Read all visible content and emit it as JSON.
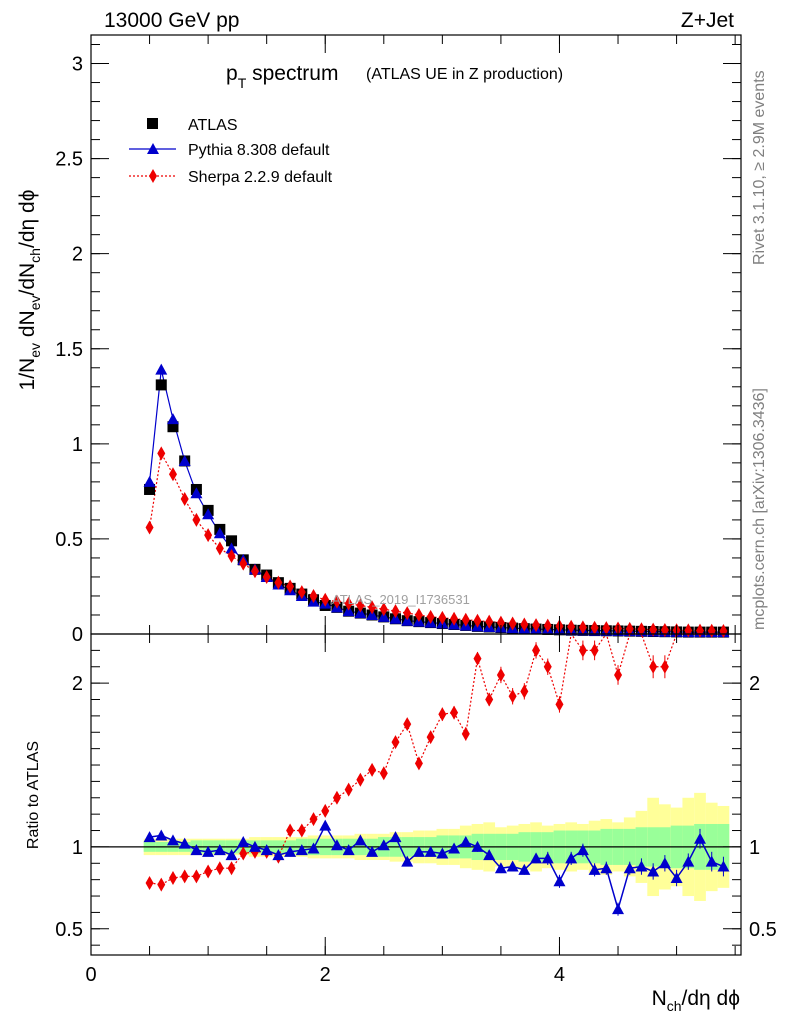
{
  "header": {
    "energy": "13000 GeV pp",
    "process": "Z+Jet"
  },
  "side_labels": {
    "rivet": "Rivet 3.1.10, ≥ 2.9M events",
    "mcplots": "mcplots.cern.ch [arXiv:1306.3436]"
  },
  "chart_data": {
    "type": "scatter",
    "title_main": "p",
    "title_sub": "T",
    "title_tail": " spectrum",
    "title_note": "(ATLAS UE in Z production)",
    "analysis_label": "ATLAS_2019_I1736531",
    "xlabel": {
      "main": "N",
      "sub": "ch",
      "tail": "/dη dϕ"
    },
    "ylabel": {
      "p1": "1/N",
      "s1": "ev",
      "p2": " dN",
      "s2": "ev",
      "p3": "/dN",
      "s3": "ch",
      "p4": "/dη dϕ"
    },
    "ratio_ylabel": "Ratio to ATLAS",
    "xlim": [
      0,
      5.55
    ],
    "ylim": [
      0,
      3.15
    ],
    "ratio_ylim": [
      0.34,
      2.3
    ],
    "x_ticks": [
      0,
      2,
      4
    ],
    "x_tick_labels": [
      "0",
      "2",
      "4"
    ],
    "y_ticks": [
      0,
      0.5,
      1,
      1.5,
      2,
      2.5,
      3
    ],
    "y_tick_labels": [
      "0",
      "0.5",
      "1",
      "1.5",
      "2",
      "2.5",
      "3"
    ],
    "ratio_ticks": [
      0.5,
      1,
      2
    ],
    "ratio_tick_labels": [
      "0.5",
      "1",
      "2"
    ],
    "legend": [
      {
        "name": "ATLAS",
        "marker": "square",
        "color": "#000000"
      },
      {
        "name": "Pythia 8.308 default",
        "marker": "triangle",
        "color": "#0000cc"
      },
      {
        "name": "Sherpa 2.2.9 default",
        "marker": "diamond",
        "color": "#ee0000"
      }
    ],
    "x": [
      0.5,
      0.6,
      0.7,
      0.8,
      0.9,
      1.0,
      1.1,
      1.2,
      1.3,
      1.4,
      1.5,
      1.6,
      1.7,
      1.8,
      1.9,
      2.0,
      2.1,
      2.2,
      2.3,
      2.4,
      2.5,
      2.6,
      2.7,
      2.8,
      2.9,
      3.0,
      3.1,
      3.2,
      3.3,
      3.4,
      3.5,
      3.6,
      3.7,
      3.8,
      3.9,
      4.0,
      4.1,
      4.2,
      4.3,
      4.4,
      4.5,
      4.6,
      4.7,
      4.8,
      4.9,
      5.0,
      5.1,
      5.2,
      5.3,
      5.4
    ],
    "series": [
      {
        "name": "ATLAS",
        "values": [
          0.76,
          1.31,
          1.09,
          0.91,
          0.76,
          0.65,
          0.55,
          0.49,
          0.39,
          0.34,
          0.31,
          0.27,
          0.24,
          0.21,
          0.18,
          0.15,
          0.14,
          0.12,
          0.11,
          0.1,
          0.09,
          0.08,
          0.07,
          0.065,
          0.06,
          0.055,
          0.05,
          0.045,
          0.04,
          0.037,
          0.034,
          0.031,
          0.028,
          0.026,
          0.024,
          0.022,
          0.02,
          0.019,
          0.018,
          0.017,
          0.016,
          0.015,
          0.014,
          0.013,
          0.012,
          0.011,
          0.01,
          0.01,
          0.01,
          0.01
        ]
      },
      {
        "name": "Pythia 8.308 default",
        "values": [
          0.8,
          1.39,
          1.13,
          0.91,
          0.74,
          0.63,
          0.53,
          0.45,
          0.39,
          0.34,
          0.3,
          0.26,
          0.23,
          0.2,
          0.17,
          0.16,
          0.14,
          0.12,
          0.11,
          0.1,
          0.09,
          0.08,
          0.07,
          0.065,
          0.06,
          0.055,
          0.05,
          0.045,
          0.04,
          0.037,
          0.034,
          0.031,
          0.028,
          0.026,
          0.024,
          0.022,
          0.02,
          0.019,
          0.018,
          0.017,
          0.016,
          0.015,
          0.014,
          0.013,
          0.012,
          0.011,
          0.01,
          0.01,
          0.01,
          0.01
        ]
      },
      {
        "name": "Sherpa 2.2.9 default",
        "values": [
          0.56,
          0.95,
          0.84,
          0.71,
          0.6,
          0.52,
          0.45,
          0.41,
          0.37,
          0.33,
          0.3,
          0.27,
          0.25,
          0.22,
          0.2,
          0.18,
          0.17,
          0.16,
          0.15,
          0.14,
          0.13,
          0.12,
          0.11,
          0.1,
          0.09,
          0.085,
          0.08,
          0.075,
          0.07,
          0.065,
          0.06,
          0.055,
          0.05,
          0.047,
          0.044,
          0.041,
          0.038,
          0.035,
          0.033,
          0.031,
          0.029,
          0.027,
          0.025,
          0.023,
          0.021,
          0.02,
          0.019,
          0.018,
          0.017,
          0.016
        ]
      }
    ],
    "ratio_series": [
      {
        "name": "Pythia 8.308 default",
        "values": [
          1.06,
          1.07,
          1.04,
          1.02,
          0.98,
          0.97,
          0.98,
          0.95,
          1.03,
          1.0,
          0.98,
          0.95,
          0.97,
          0.98,
          0.99,
          1.13,
          1.01,
          0.98,
          1.04,
          0.97,
          1.01,
          1.06,
          0.91,
          0.97,
          0.97,
          0.96,
          0.99,
          1.03,
          1.0,
          0.95,
          0.87,
          0.88,
          0.86,
          0.93,
          0.93,
          0.79,
          0.93,
          0.98,
          0.86,
          0.87,
          0.62,
          0.87,
          0.88,
          0.85,
          0.9,
          0.81,
          0.91,
          1.05,
          0.91,
          0.88
        ],
        "errors": [
          0.01,
          0.01,
          0.01,
          0.01,
          0.01,
          0.01,
          0.01,
          0.01,
          0.01,
          0.01,
          0.01,
          0.01,
          0.01,
          0.01,
          0.01,
          0.02,
          0.02,
          0.02,
          0.02,
          0.02,
          0.02,
          0.02,
          0.02,
          0.02,
          0.02,
          0.02,
          0.02,
          0.03,
          0.03,
          0.03,
          0.03,
          0.03,
          0.03,
          0.03,
          0.04,
          0.04,
          0.04,
          0.04,
          0.04,
          0.04,
          0.04,
          0.04,
          0.05,
          0.05,
          0.05,
          0.05,
          0.05,
          0.06,
          0.06,
          0.06
        ]
      },
      {
        "name": "Sherpa 2.2.9 default",
        "values": [
          0.78,
          0.77,
          0.81,
          0.82,
          0.82,
          0.85,
          0.87,
          0.87,
          0.96,
          0.97,
          0.97,
          0.94,
          1.1,
          1.1,
          1.17,
          1.22,
          1.3,
          1.35,
          1.41,
          1.47,
          1.45,
          1.64,
          1.75,
          1.51,
          1.67,
          1.81,
          1.82,
          1.69,
          2.15,
          1.9,
          2.05,
          1.92,
          1.95,
          2.2,
          2.1,
          1.87,
          2.3,
          2.2,
          2.2,
          2.3,
          2.05,
          2.3,
          2.4,
          2.1,
          2.1,
          2.3,
          2.3,
          2.3,
          2.3,
          2.3
        ],
        "errors": [
          0.01,
          0.01,
          0.01,
          0.01,
          0.01,
          0.01,
          0.01,
          0.01,
          0.01,
          0.01,
          0.02,
          0.02,
          0.02,
          0.02,
          0.02,
          0.02,
          0.02,
          0.02,
          0.02,
          0.03,
          0.03,
          0.03,
          0.03,
          0.03,
          0.03,
          0.04,
          0.04,
          0.04,
          0.04,
          0.04,
          0.05,
          0.05,
          0.05,
          0.05,
          0.05,
          0.05,
          0.06,
          0.06,
          0.06,
          0.06,
          0.06,
          0.06,
          0.07,
          0.07,
          0.07,
          0.07,
          0.07,
          0.08,
          0.08,
          0.08
        ]
      }
    ],
    "ratio_band_stat": [
      0.03,
      0.03,
      0.03,
      0.03,
      0.04,
      0.04,
      0.04,
      0.04,
      0.04,
      0.04,
      0.04,
      0.04,
      0.04,
      0.05,
      0.05,
      0.05,
      0.05,
      0.05,
      0.05,
      0.05,
      0.06,
      0.06,
      0.06,
      0.06,
      0.06,
      0.07,
      0.07,
      0.07,
      0.08,
      0.08,
      0.08,
      0.08,
      0.09,
      0.09,
      0.09,
      0.1,
      0.1,
      0.1,
      0.1,
      0.11,
      0.11,
      0.11,
      0.12,
      0.12,
      0.12,
      0.13,
      0.13,
      0.14,
      0.14,
      0.14
    ],
    "ratio_band_total": [
      0.05,
      0.05,
      0.05,
      0.05,
      0.05,
      0.05,
      0.05,
      0.05,
      0.05,
      0.06,
      0.06,
      0.06,
      0.06,
      0.06,
      0.07,
      0.07,
      0.07,
      0.07,
      0.08,
      0.08,
      0.08,
      0.09,
      0.09,
      0.1,
      0.1,
      0.11,
      0.11,
      0.13,
      0.14,
      0.15,
      0.12,
      0.13,
      0.14,
      0.15,
      0.13,
      0.14,
      0.15,
      0.14,
      0.16,
      0.17,
      0.15,
      0.18,
      0.22,
      0.3,
      0.26,
      0.24,
      0.3,
      0.33,
      0.27,
      0.25
    ]
  }
}
